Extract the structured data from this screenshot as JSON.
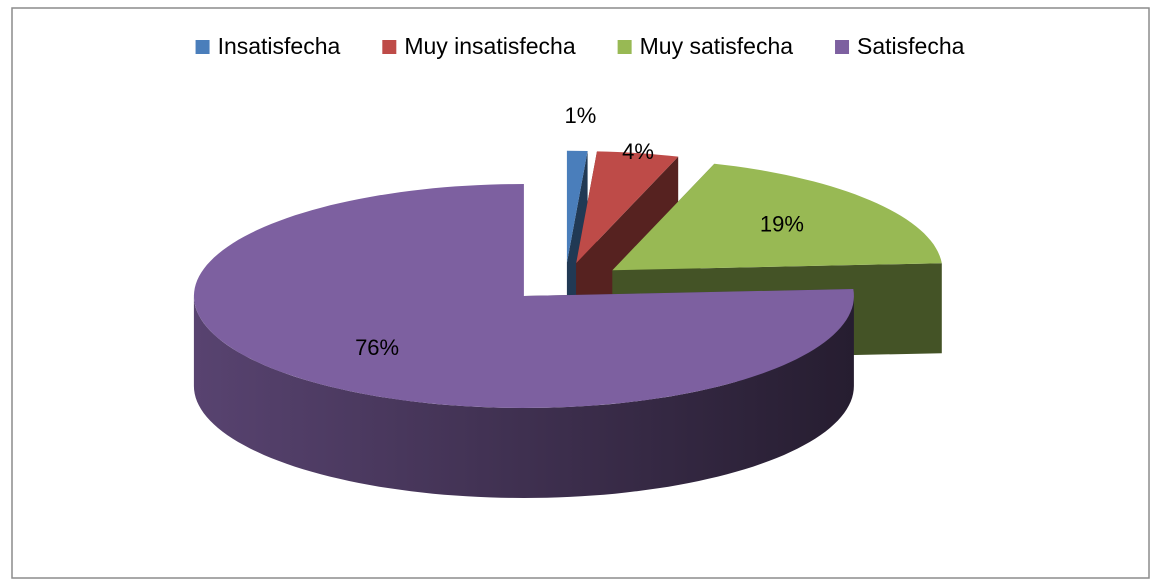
{
  "chart_data": {
    "type": "pie",
    "categories": [
      "Insatisfecha",
      "Muy insatisfecha",
      "Muy satisfecha",
      "Satisfecha"
    ],
    "values": [
      1,
      4,
      19,
      76
    ],
    "value_labels": [
      "1%",
      "4%",
      "19%",
      "76%"
    ],
    "colors": [
      "#4a7ebb",
      "#be4b48",
      "#98b954",
      "#7d60a0"
    ],
    "legend": "top",
    "style": "3d-exploded"
  }
}
